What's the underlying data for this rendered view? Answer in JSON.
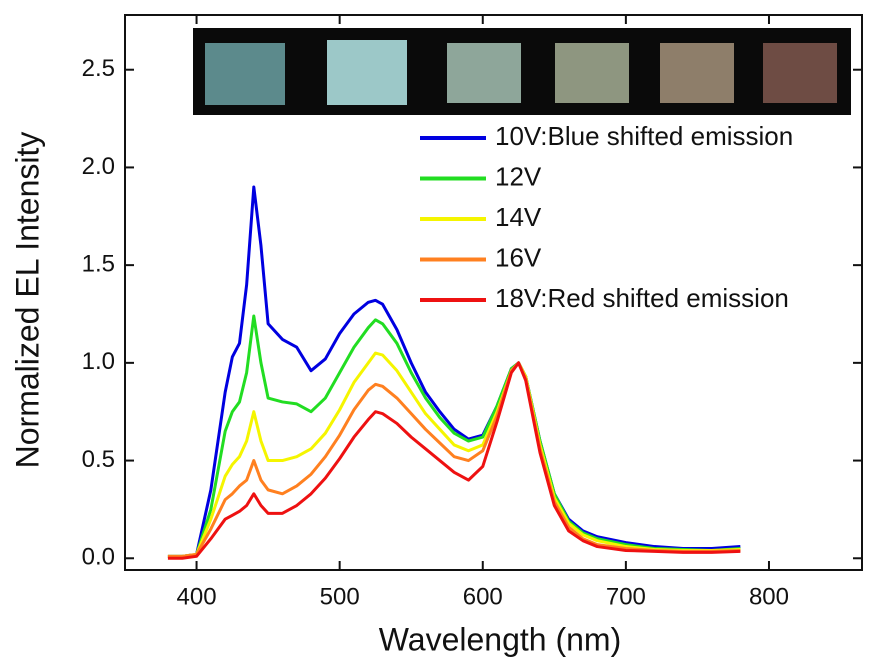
{
  "chart_data": {
    "type": "line",
    "x_label": "Wavelength (nm)",
    "y_label": "Normalized EL Intensity",
    "x": [
      380,
      390,
      400,
      410,
      420,
      425,
      430,
      435,
      440,
      445,
      450,
      460,
      470,
      480,
      490,
      500,
      510,
      520,
      525,
      530,
      540,
      550,
      560,
      570,
      580,
      590,
      600,
      610,
      620,
      625,
      630,
      640,
      650,
      660,
      670,
      680,
      700,
      720,
      740,
      760,
      780
    ],
    "series": [
      {
        "name": "10V:Blue shifted emission",
        "color": "#0000e0",
        "values": [
          0.01,
          0.01,
          0.02,
          0.35,
          0.85,
          1.03,
          1.1,
          1.4,
          1.9,
          1.6,
          1.2,
          1.12,
          1.08,
          0.96,
          1.02,
          1.15,
          1.25,
          1.31,
          1.32,
          1.3,
          1.17,
          1.0,
          0.85,
          0.75,
          0.66,
          0.61,
          0.63,
          0.78,
          0.97,
          1.0,
          0.93,
          0.6,
          0.33,
          0.2,
          0.14,
          0.11,
          0.08,
          0.06,
          0.05,
          0.05,
          0.06
        ]
      },
      {
        "name": "12V",
        "color": "#22dd22",
        "values": [
          0.01,
          0.01,
          0.02,
          0.25,
          0.65,
          0.75,
          0.8,
          0.95,
          1.24,
          1.0,
          0.82,
          0.8,
          0.79,
          0.75,
          0.82,
          0.95,
          1.08,
          1.18,
          1.22,
          1.2,
          1.1,
          0.95,
          0.82,
          0.72,
          0.64,
          0.6,
          0.62,
          0.78,
          0.97,
          1.0,
          0.93,
          0.6,
          0.33,
          0.19,
          0.13,
          0.1,
          0.07,
          0.05,
          0.045,
          0.04,
          0.05
        ]
      },
      {
        "name": "14V",
        "color": "#f5f500",
        "values": [
          0.01,
          0.01,
          0.02,
          0.2,
          0.42,
          0.48,
          0.52,
          0.6,
          0.75,
          0.6,
          0.5,
          0.5,
          0.52,
          0.56,
          0.64,
          0.76,
          0.9,
          1.0,
          1.05,
          1.04,
          0.96,
          0.85,
          0.74,
          0.66,
          0.58,
          0.55,
          0.58,
          0.75,
          0.96,
          1.0,
          0.93,
          0.58,
          0.31,
          0.18,
          0.12,
          0.09,
          0.06,
          0.045,
          0.04,
          0.04,
          0.045
        ]
      },
      {
        "name": "16V",
        "color": "#ff8020",
        "values": [
          0.01,
          0.01,
          0.02,
          0.15,
          0.3,
          0.33,
          0.37,
          0.4,
          0.5,
          0.4,
          0.35,
          0.33,
          0.37,
          0.43,
          0.52,
          0.63,
          0.76,
          0.86,
          0.89,
          0.88,
          0.82,
          0.74,
          0.66,
          0.59,
          0.52,
          0.5,
          0.55,
          0.73,
          0.96,
          1.0,
          0.92,
          0.56,
          0.29,
          0.16,
          0.1,
          0.07,
          0.05,
          0.04,
          0.035,
          0.035,
          0.04
        ]
      },
      {
        "name": "18V:Red shifted emission",
        "color": "#ee1111",
        "values": [
          0.0,
          0.0,
          0.01,
          0.1,
          0.2,
          0.22,
          0.24,
          0.27,
          0.33,
          0.27,
          0.23,
          0.23,
          0.27,
          0.33,
          0.41,
          0.51,
          0.62,
          0.71,
          0.75,
          0.74,
          0.69,
          0.62,
          0.56,
          0.5,
          0.44,
          0.4,
          0.47,
          0.7,
          0.95,
          1.0,
          0.91,
          0.54,
          0.27,
          0.14,
          0.09,
          0.06,
          0.04,
          0.035,
          0.03,
          0.03,
          0.035
        ]
      }
    ],
    "xlim": [
      350,
      865
    ],
    "ylim": [
      -0.06,
      2.78
    ],
    "xticks": [
      400,
      500,
      600,
      700,
      800
    ],
    "yticks": [
      {
        "value": 0,
        "label": "0.0"
      },
      0.5,
      {
        "value": 1,
        "label": "1.0"
      },
      1.5,
      {
        "value": 2,
        "label": "2.0"
      },
      2.5
    ],
    "legend": "upper right"
  }
}
